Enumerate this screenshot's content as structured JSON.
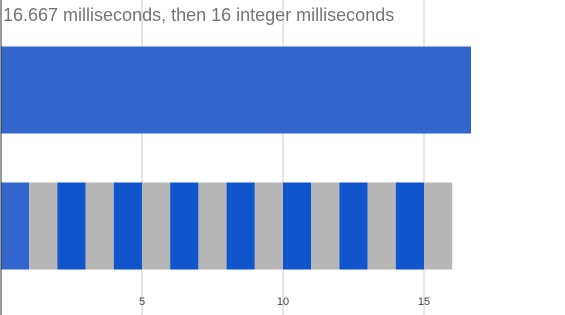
{
  "chart_data": {
    "type": "bar",
    "orientation": "horizontal",
    "stacked": true,
    "title": "16.667 milliseconds, then 16 integer milliseconds",
    "categories": [
      null,
      null
    ],
    "series": [
      {
        "color": "#3366cc",
        "values": [
          16.667,
          1
        ]
      },
      {
        "color": "#b7b7b7",
        "values": [
          null,
          1
        ]
      },
      {
        "color": "#1155cc",
        "values": [
          null,
          1
        ]
      },
      {
        "color": "#b7b7b7",
        "values": [
          null,
          1
        ]
      },
      {
        "color": "#1155cc",
        "values": [
          null,
          1
        ]
      },
      {
        "color": "#b7b7b7",
        "values": [
          null,
          1
        ]
      },
      {
        "color": "#1155cc",
        "values": [
          null,
          1
        ]
      },
      {
        "color": "#b7b7b7",
        "values": [
          null,
          1
        ]
      },
      {
        "color": "#1155cc",
        "values": [
          null,
          1
        ]
      },
      {
        "color": "#b7b7b7",
        "values": [
          null,
          1
        ]
      },
      {
        "color": "#1155cc",
        "values": [
          null,
          1
        ]
      },
      {
        "color": "#b7b7b7",
        "values": [
          null,
          1
        ]
      },
      {
        "color": "#1155cc",
        "values": [
          null,
          1
        ]
      },
      {
        "color": "#b7b7b7",
        "values": [
          null,
          1
        ]
      },
      {
        "color": "#1155cc",
        "values": [
          null,
          1
        ]
      },
      {
        "color": "#b7b7b7",
        "values": [
          null,
          1
        ]
      }
    ],
    "xlim": [
      0,
      20
    ],
    "xticks": [
      5,
      10,
      15
    ],
    "grid": true
  }
}
